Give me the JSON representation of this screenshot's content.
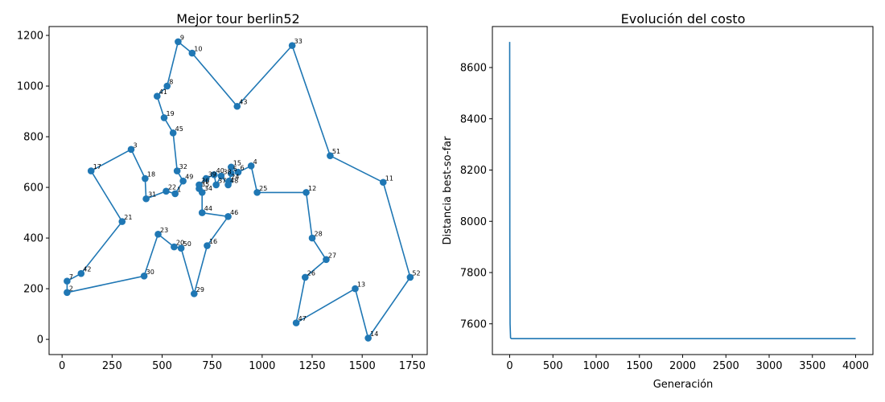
{
  "chart_data": [
    {
      "type": "line",
      "title": "Mejor tour berlin52",
      "xlabel": "",
      "ylabel": "",
      "xlim": [
        -65,
        1825
      ],
      "ylim": [
        -60,
        1235
      ],
      "xticks": [
        0,
        250,
        500,
        750,
        1000,
        1250,
        1500,
        1750
      ],
      "yticks": [
        0,
        200,
        400,
        600,
        800,
        1000,
        1200
      ],
      "grid": false,
      "color": "#1f77b4",
      "points": [
        {
          "id": "1",
          "x": 565,
          "y": 575
        },
        {
          "id": "2",
          "x": 25,
          "y": 185
        },
        {
          "id": "3",
          "x": 345,
          "y": 750
        },
        {
          "id": "4",
          "x": 945,
          "y": 685
        },
        {
          "id": "5",
          "x": 845,
          "y": 655
        },
        {
          "id": "6",
          "x": 880,
          "y": 660
        },
        {
          "id": "7",
          "x": 25,
          "y": 230
        },
        {
          "id": "8",
          "x": 525,
          "y": 1000
        },
        {
          "id": "9",
          "x": 580,
          "y": 1175
        },
        {
          "id": "10",
          "x": 650,
          "y": 1130
        },
        {
          "id": "11",
          "x": 1605,
          "y": 620
        },
        {
          "id": "12",
          "x": 1220,
          "y": 580
        },
        {
          "id": "13",
          "x": 1465,
          "y": 200
        },
        {
          "id": "14",
          "x": 1530,
          "y": 5
        },
        {
          "id": "15",
          "x": 845,
          "y": 680
        },
        {
          "id": "16",
          "x": 725,
          "y": 370
        },
        {
          "id": "17",
          "x": 145,
          "y": 665
        },
        {
          "id": "18",
          "x": 415,
          "y": 635
        },
        {
          "id": "19",
          "x": 510,
          "y": 875
        },
        {
          "id": "20",
          "x": 560,
          "y": 365
        },
        {
          "id": "21",
          "x": 300,
          "y": 465
        },
        {
          "id": "22",
          "x": 520,
          "y": 585
        },
        {
          "id": "23",
          "x": 480,
          "y": 415
        },
        {
          "id": "24",
          "x": 835,
          "y": 625
        },
        {
          "id": "25",
          "x": 975,
          "y": 580
        },
        {
          "id": "26",
          "x": 1215,
          "y": 245
        },
        {
          "id": "27",
          "x": 1320,
          "y": 315
        },
        {
          "id": "28",
          "x": 1250,
          "y": 400
        },
        {
          "id": "29",
          "x": 660,
          "y": 180
        },
        {
          "id": "30",
          "x": 410,
          "y": 250
        },
        {
          "id": "31",
          "x": 420,
          "y": 555
        },
        {
          "id": "32",
          "x": 575,
          "y": 665
        },
        {
          "id": "33",
          "x": 1150,
          "y": 1160
        },
        {
          "id": "34",
          "x": 700,
          "y": 580
        },
        {
          "id": "35",
          "x": 685,
          "y": 595
        },
        {
          "id": "36",
          "x": 685,
          "y": 610
        },
        {
          "id": "37",
          "x": 770,
          "y": 610
        },
        {
          "id": "38",
          "x": 795,
          "y": 645
        },
        {
          "id": "39",
          "x": 720,
          "y": 635
        },
        {
          "id": "40",
          "x": 760,
          "y": 650
        },
        {
          "id": "41",
          "x": 475,
          "y": 960
        },
        {
          "id": "42",
          "x": 95,
          "y": 260
        },
        {
          "id": "43",
          "x": 875,
          "y": 920
        },
        {
          "id": "44",
          "x": 700,
          "y": 500
        },
        {
          "id": "45",
          "x": 555,
          "y": 815
        },
        {
          "id": "46",
          "x": 830,
          "y": 485
        },
        {
          "id": "47",
          "x": 1170,
          "y": 65
        },
        {
          "id": "48",
          "x": 830,
          "y": 610
        },
        {
          "id": "49",
          "x": 605,
          "y": 625
        },
        {
          "id": "50",
          "x": 595,
          "y": 360
        },
        {
          "id": "51",
          "x": 1340,
          "y": 725
        },
        {
          "id": "52",
          "x": 1740,
          "y": 245
        }
      ],
      "tour": [
        "1",
        "49",
        "32",
        "45",
        "19",
        "41",
        "8",
        "9",
        "10",
        "43",
        "33",
        "51",
        "11",
        "52",
        "14",
        "13",
        "47",
        "26",
        "27",
        "28",
        "12",
        "25",
        "4",
        "6",
        "15",
        "5",
        "24",
        "48",
        "38",
        "37",
        "40",
        "39",
        "36",
        "35",
        "34",
        "44",
        "46",
        "16",
        "29",
        "50",
        "20",
        "23",
        "30",
        "2",
        "7",
        "42",
        "21",
        "17",
        "3",
        "18",
        "31",
        "22",
        "1"
      ]
    },
    {
      "type": "line",
      "title": "Evolución del costo",
      "xlabel": "Generación",
      "ylabel": "Distancia best-so-far",
      "xlim": [
        -200,
        4200
      ],
      "ylim": [
        7480,
        8760
      ],
      "xticks": [
        0,
        500,
        1000,
        1500,
        2000,
        2500,
        3000,
        3500,
        4000
      ],
      "yticks": [
        7600,
        7800,
        8000,
        8200,
        8400,
        8600
      ],
      "grid": false,
      "color": "#1f77b4",
      "x": [
        0,
        2,
        5,
        10,
        20,
        4000
      ],
      "y": [
        8700,
        7900,
        7600,
        7545,
        7542,
        7542
      ]
    }
  ]
}
